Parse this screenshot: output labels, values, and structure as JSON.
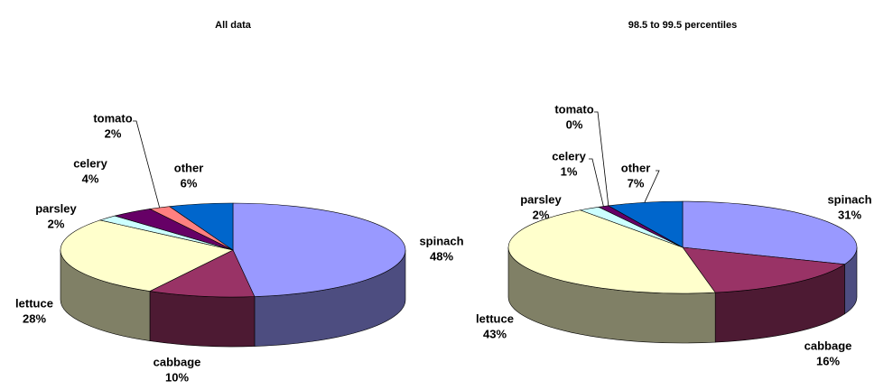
{
  "chart_data": [
    {
      "type": "pie",
      "title": "All data",
      "categories": [
        "spinach",
        "cabbage",
        "lettuce",
        "parsley",
        "celery",
        "tomato",
        "other"
      ],
      "values": [
        48,
        10,
        28,
        2,
        4,
        2,
        6
      ],
      "value_labels": [
        "48%",
        "10%",
        "28%",
        "2%",
        "4%",
        "2%",
        "6%"
      ],
      "colors": [
        "#9999ff",
        "#993366",
        "#ffffcc",
        "#ccffff",
        "#660066",
        "#ff8080",
        "#0066cc"
      ]
    },
    {
      "type": "pie",
      "title": "98.5 to 99.5 percentiles",
      "categories": [
        "spinach",
        "cabbage",
        "lettuce",
        "parsley",
        "celery",
        "tomato",
        "other"
      ],
      "values": [
        31,
        16,
        43,
        2,
        1,
        0,
        7
      ],
      "value_labels": [
        "31%",
        "16%",
        "43%",
        "2%",
        "1%",
        "0%",
        "7%"
      ],
      "colors": [
        "#9999ff",
        "#993366",
        "#ffffcc",
        "#ccffff",
        "#660066",
        "#ff8080",
        "#0066cc"
      ]
    }
  ]
}
